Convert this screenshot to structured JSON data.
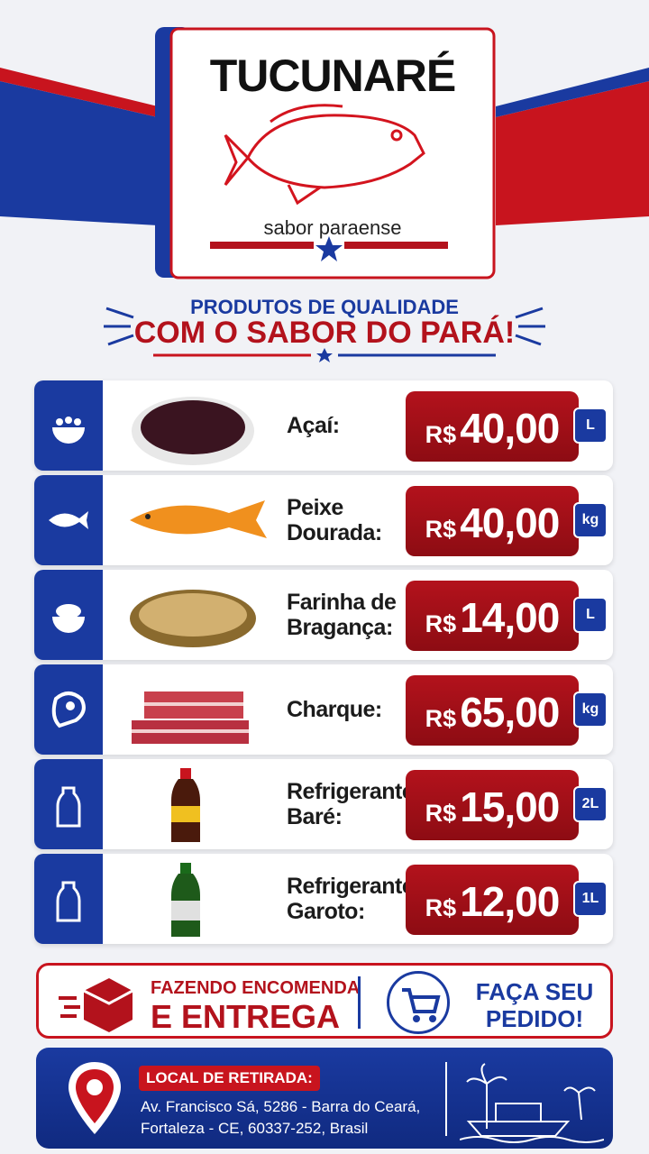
{
  "header": {
    "brand": "TUCUNARÉ",
    "tagline": "sabor paraense"
  },
  "headline": {
    "line1": "PRODUTOS DE QUALIDADE",
    "line2": "COM O SABOR DO PARÁ!"
  },
  "products": [
    {
      "name": [
        "Açaí:"
      ],
      "currency": "R$",
      "price": "40,00",
      "unit": "L"
    },
    {
      "name": [
        "Peixe",
        "Dourada:"
      ],
      "currency": "R$",
      "price": "40,00",
      "unit": "kg"
    },
    {
      "name": [
        "Farinha de",
        "Bragança:"
      ],
      "currency": "R$",
      "price": "14,00",
      "unit": "L"
    },
    {
      "name": [
        "Charque:"
      ],
      "currency": "R$",
      "price": "65,00",
      "unit": "kg"
    },
    {
      "name": [
        "Refrigerante",
        "Baré:"
      ],
      "currency": "R$",
      "price": "15,00",
      "unit": "2L"
    },
    {
      "name": [
        "Refrigerante",
        "Garoto:"
      ],
      "currency": "R$",
      "price": "12,00",
      "unit": "1L"
    }
  ],
  "banner": {
    "left": [
      "FAZENDO ENCOMENDA",
      "E ENTREGA"
    ],
    "right": [
      "FAÇA SEU",
      "PEDIDO!"
    ]
  },
  "footer": {
    "label": "LOCAL DE RETIRADA:",
    "address": [
      "Av. Francisco Sá, 5286 - Barra do Ceará,",
      "Fortaleza - CE, 60337-252, Brasil"
    ]
  }
}
